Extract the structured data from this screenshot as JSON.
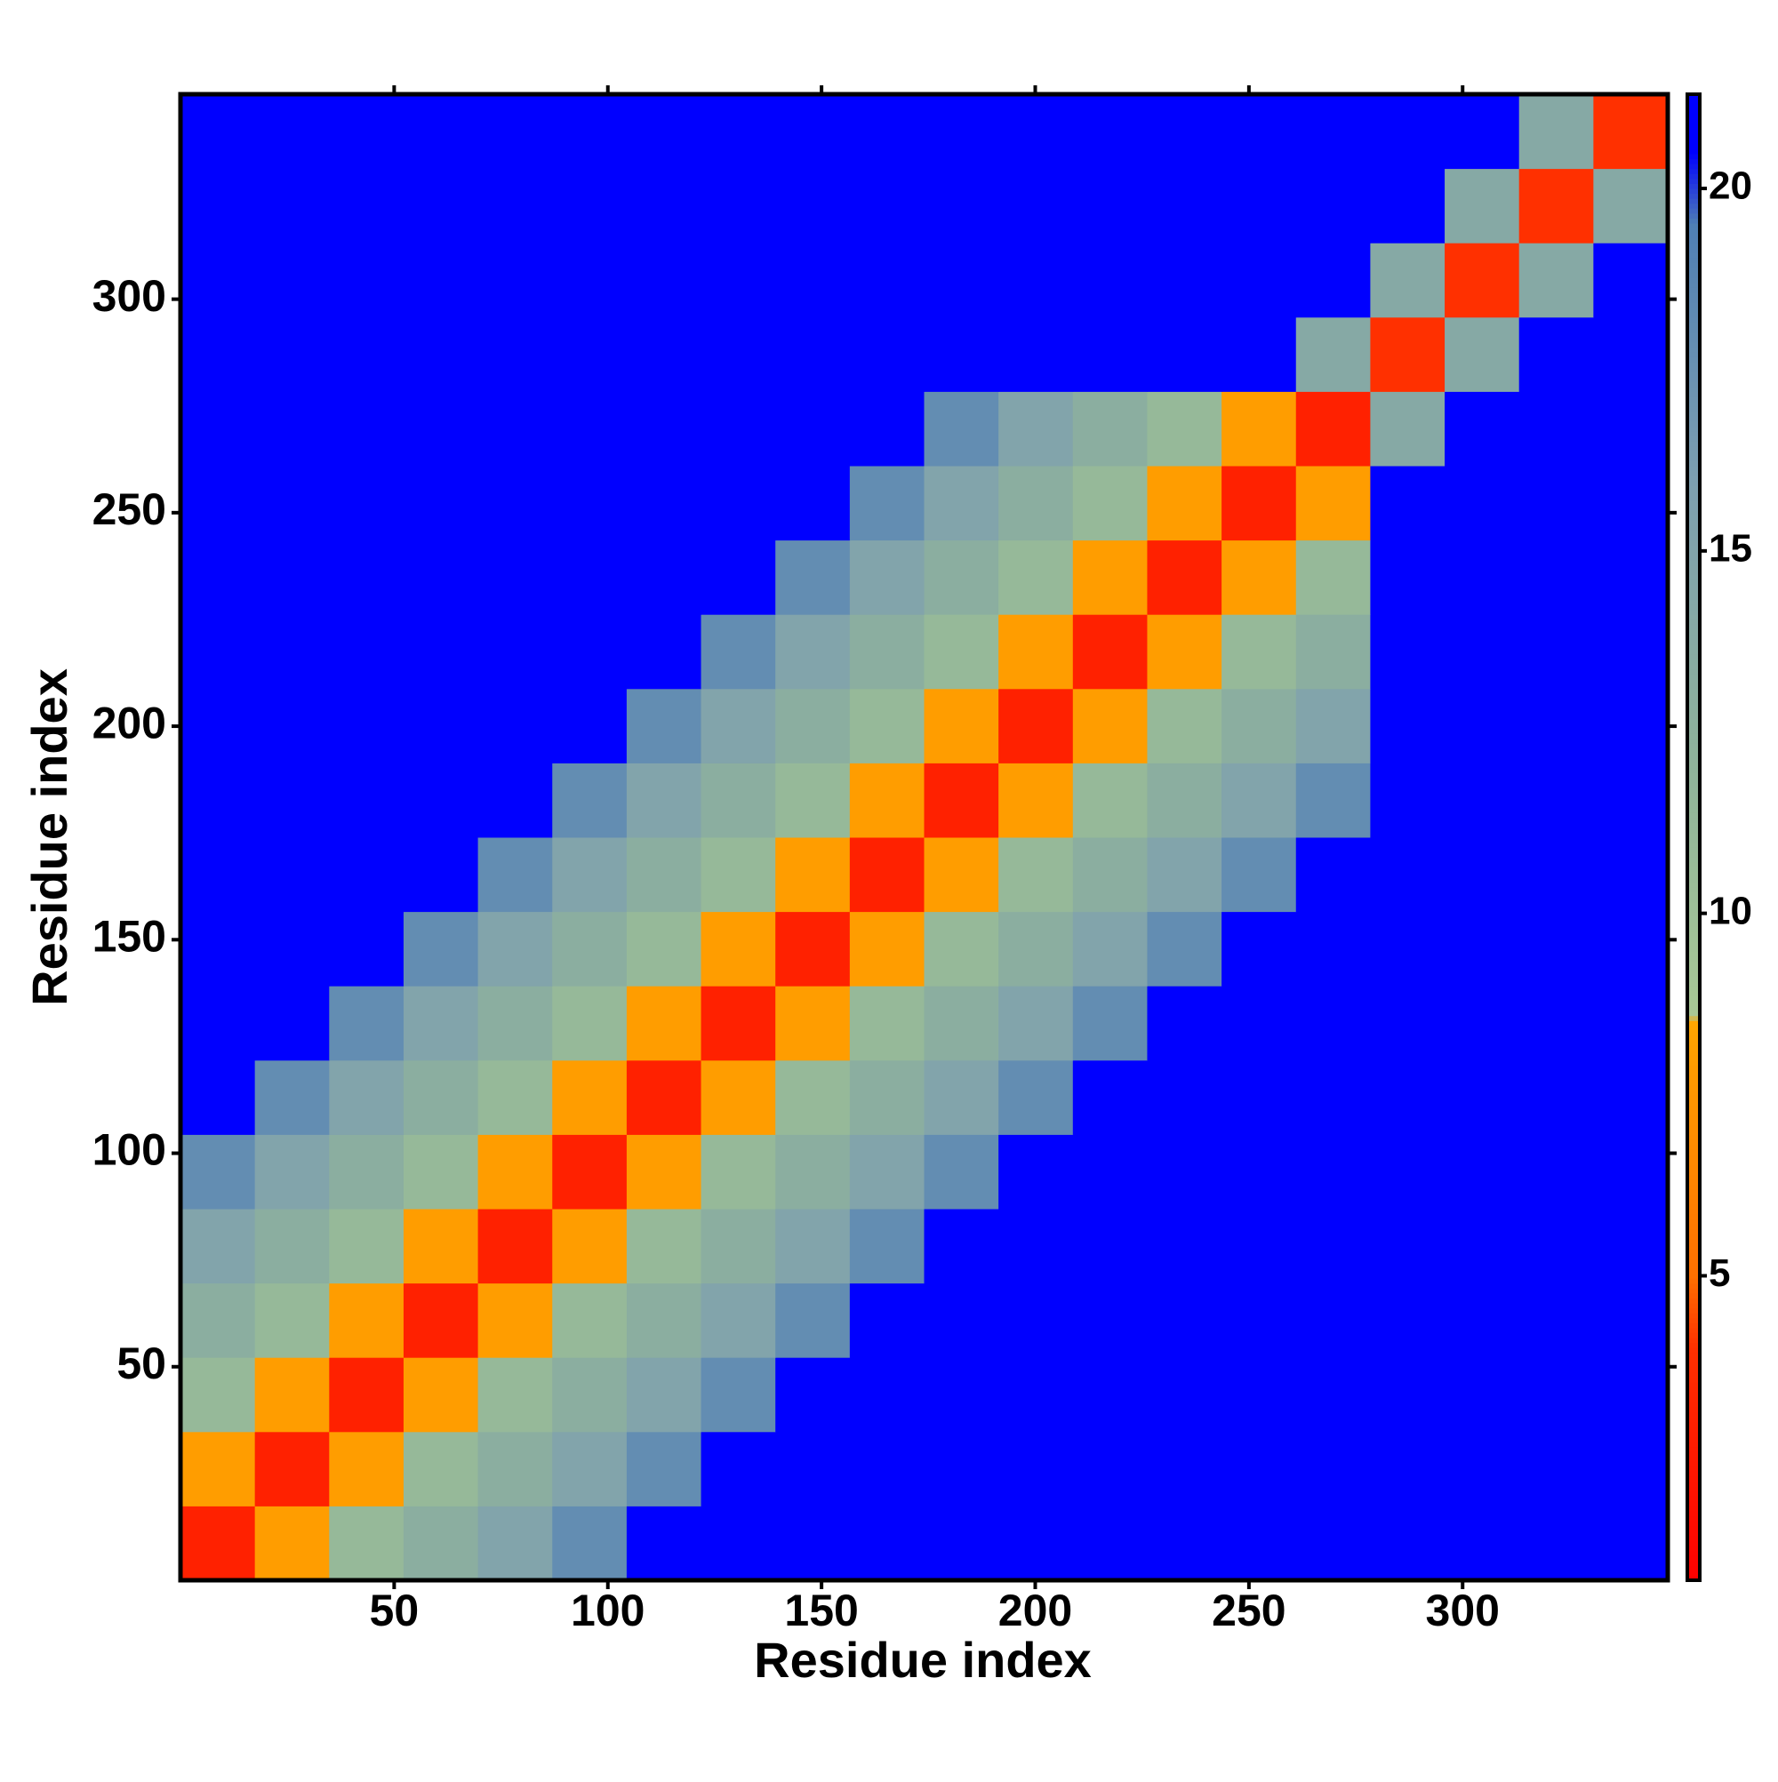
{
  "chart_data": {
    "type": "heatmap",
    "xlabel": "Residue index",
    "ylabel": "Residue index",
    "xlim": [
      0,
      348
    ],
    "ylim": [
      0,
      348
    ],
    "xticks": [
      50,
      100,
      150,
      200,
      250,
      300
    ],
    "yticks": [
      50,
      100,
      150,
      200,
      250,
      300
    ],
    "xbins": [
      0,
      17.4,
      34.8,
      52.2,
      69.6,
      87,
      104.4,
      121.8,
      139.2,
      156.6,
      174,
      191.4,
      208.8,
      226.2,
      243.6,
      261,
      278.4,
      295.8,
      313.2,
      330.6,
      348
    ],
    "ybins": [
      0,
      17.4,
      34.8,
      52.2,
      69.6,
      87,
      104.4,
      121.8,
      139.2,
      156.6,
      174,
      191.4,
      208.8,
      226.2,
      243.6,
      261,
      278.4,
      295.8,
      313.2,
      330.6,
      348
    ],
    "z": [
      [
        3,
        8,
        11,
        13,
        15,
        18,
        21,
        21,
        21,
        21,
        21,
        21,
        21,
        21,
        21,
        21,
        21,
        21,
        21,
        21
      ],
      [
        8,
        3,
        8,
        11,
        13,
        15,
        18,
        21,
        21,
        21,
        21,
        21,
        21,
        21,
        21,
        21,
        21,
        21,
        21,
        21
      ],
      [
        11,
        8,
        3,
        8,
        11,
        13,
        15,
        18,
        21,
        21,
        21,
        21,
        21,
        21,
        21,
        21,
        21,
        21,
        21,
        21
      ],
      [
        13,
        11,
        8,
        3,
        8,
        11,
        13,
        15,
        18,
        21,
        21,
        21,
        21,
        21,
        21,
        21,
        21,
        21,
        21,
        21
      ],
      [
        15,
        13,
        11,
        8,
        3,
        8,
        11,
        13,
        15,
        18,
        21,
        21,
        21,
        21,
        21,
        21,
        21,
        21,
        21,
        21
      ],
      [
        18,
        15,
        13,
        11,
        8,
        3,
        8,
        11,
        13,
        15,
        18,
        21,
        21,
        21,
        21,
        21,
        21,
        21,
        21,
        21
      ],
      [
        21,
        18,
        15,
        13,
        11,
        8,
        3,
        8,
        11,
        13,
        15,
        18,
        21,
        21,
        21,
        21,
        21,
        21,
        21,
        21
      ],
      [
        21,
        21,
        18,
        15,
        13,
        11,
        8,
        3,
        8,
        11,
        13,
        15,
        18,
        21,
        21,
        21,
        21,
        21,
        21,
        21
      ],
      [
        21,
        21,
        21,
        18,
        15,
        13,
        11,
        8,
        3,
        8,
        11,
        13,
        15,
        18,
        21,
        21,
        21,
        21,
        21,
        21
      ],
      [
        21,
        21,
        21,
        21,
        18,
        15,
        13,
        11,
        8,
        3,
        8,
        11,
        13,
        15,
        18,
        21,
        21,
        21,
        21,
        21
      ],
      [
        21,
        21,
        21,
        21,
        21,
        18,
        15,
        13,
        11,
        8,
        3,
        8,
        11,
        13,
        15,
        18,
        21,
        21,
        21,
        21
      ],
      [
        21,
        21,
        21,
        21,
        21,
        21,
        18,
        15,
        13,
        11,
        8,
        3,
        8,
        11,
        13,
        15,
        21,
        21,
        21,
        21
      ],
      [
        21,
        21,
        21,
        21,
        21,
        21,
        21,
        18,
        15,
        13,
        11,
        8,
        3,
        8,
        11,
        13,
        21,
        21,
        21,
        21
      ],
      [
        21,
        21,
        21,
        21,
        21,
        21,
        21,
        21,
        18,
        15,
        13,
        11,
        8,
        3,
        8,
        11,
        21,
        21,
        21,
        21
      ],
      [
        21,
        21,
        21,
        21,
        21,
        21,
        21,
        21,
        21,
        18,
        15,
        13,
        11,
        8,
        3,
        8,
        21,
        21,
        21,
        21
      ],
      [
        21,
        21,
        21,
        21,
        21,
        21,
        21,
        21,
        21,
        21,
        18,
        15,
        13,
        11,
        8,
        3,
        14,
        21,
        21,
        21
      ],
      [
        21,
        21,
        21,
        21,
        21,
        21,
        21,
        21,
        21,
        21,
        21,
        21,
        21,
        21,
        21,
        14,
        4,
        14,
        21,
        21
      ],
      [
        21,
        21,
        21,
        21,
        21,
        21,
        21,
        21,
        21,
        21,
        21,
        21,
        21,
        21,
        21,
        21,
        14,
        4,
        14,
        21
      ],
      [
        21,
        21,
        21,
        21,
        21,
        21,
        21,
        21,
        21,
        21,
        21,
        21,
        21,
        21,
        21,
        21,
        21,
        14,
        4,
        14
      ],
      [
        21,
        21,
        21,
        21,
        21,
        21,
        21,
        21,
        21,
        21,
        21,
        21,
        21,
        21,
        21,
        21,
        21,
        21,
        14,
        4
      ]
    ],
    "colorbar_lim": [
      0.8,
      21.3
    ],
    "colorbar_ticks": [
      5,
      10,
      15,
      20
    ],
    "colorscale": [
      [
        0.8,
        "#ff0000"
      ],
      [
        4,
        "#ff3000"
      ],
      [
        5,
        "#ff7000"
      ],
      [
        8.5,
        "#ffa500"
      ],
      [
        8.6,
        "#a8c896"
      ],
      [
        12,
        "#8fb39a"
      ],
      [
        16,
        "#7d9fb0"
      ],
      [
        19.5,
        "#4f7fb4"
      ],
      [
        20.5,
        "#0000ff"
      ],
      [
        21.3,
        "#0000ff"
      ]
    ]
  }
}
